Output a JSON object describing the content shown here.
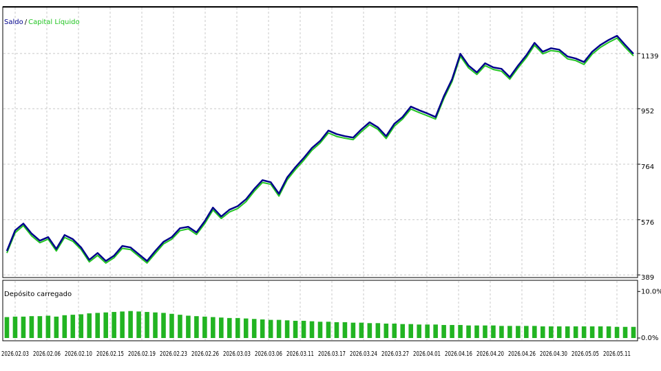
{
  "chart_data": [
    {
      "type": "line",
      "legend_separator": "/",
      "series": [
        {
          "name": "Capital Líquido",
          "color": "#22c422",
          "values": [
            463,
            532,
            556,
            521,
            498,
            510,
            470,
            516,
            503,
            475,
            433,
            455,
            429,
            447,
            479,
            475,
            452,
            429,
            462,
            494,
            510,
            539,
            545,
            526,
            563,
            609,
            580,
            602,
            614,
            637,
            672,
            702,
            696,
            656,
            711,
            746,
            777,
            811,
            836,
            870,
            858,
            852,
            847,
            874,
            898,
            882,
            851,
            893,
            917,
            951,
            939,
            928,
            917,
            986,
            1044,
            1130,
            1090,
            1068,
            1098,
            1085,
            1079,
            1052,
            1090,
            1125,
            1167,
            1138,
            1149,
            1145,
            1121,
            1115,
            1102,
            1137,
            1160,
            1177,
            1191,
            1160,
            1131
          ]
        },
        {
          "name": "Saldo",
          "color": "#00008b",
          "values": [
            470,
            540,
            563,
            529,
            505,
            517,
            477,
            524,
            510,
            482,
            440,
            463,
            436,
            454,
            487,
            482,
            459,
            436,
            470,
            501,
            517,
            547,
            552,
            533,
            571,
            617,
            587,
            610,
            622,
            645,
            680,
            710,
            703,
            664,
            719,
            754,
            785,
            819,
            843,
            878,
            866,
            859,
            854,
            882,
            906,
            889,
            859,
            901,
            924,
            959,
            947,
            936,
            924,
            994,
            1052,
            1138,
            1098,
            1075,
            1106,
            1092,
            1087,
            1059,
            1098,
            1133,
            1175,
            1145,
            1157,
            1152,
            1129,
            1122,
            1110,
            1145,
            1168,
            1185,
            1199,
            1168,
            1138
          ]
        }
      ],
      "ylim": [
        380,
        1297
      ],
      "yticks": [
        389,
        576,
        764,
        952,
        1139
      ],
      "grid": true
    },
    {
      "type": "bar",
      "title": "Depósito carregado",
      "color": "#22b422",
      "values": [
        4.5,
        4.6,
        4.6,
        4.7,
        4.7,
        4.8,
        4.6,
        4.9,
        5.0,
        5.1,
        5.3,
        5.4,
        5.5,
        5.6,
        5.7,
        5.8,
        5.7,
        5.6,
        5.5,
        5.4,
        5.2,
        5.0,
        4.8,
        4.7,
        4.6,
        4.5,
        4.4,
        4.3,
        4.3,
        4.2,
        4.1,
        4.0,
        3.9,
        3.9,
        3.8,
        3.7,
        3.7,
        3.6,
        3.5,
        3.5,
        3.4,
        3.4,
        3.3,
        3.3,
        3.2,
        3.2,
        3.1,
        3.1,
        3.0,
        3.0,
        2.9,
        2.9,
        2.9,
        2.8,
        2.8,
        2.8,
        2.7,
        2.7,
        2.7,
        2.7,
        2.6,
        2.6,
        2.6,
        2.6,
        2.6,
        2.5,
        2.5,
        2.5,
        2.5,
        2.5,
        2.5,
        2.5,
        2.5,
        2.5,
        2.4,
        2.4,
        2.4
      ],
      "ylim": [
        0,
        12.4
      ],
      "yticks": [
        {
          "value": 0,
          "label": "0.0%"
        },
        {
          "value": 10,
          "label": "10.0%"
        }
      ],
      "x_labels": [
        "2026.02.03",
        "2026.02.06",
        "2026.02.10",
        "2026.02.15",
        "2026.02.19",
        "2026.02.23",
        "2026.02.26",
        "2026.03.03",
        "2026.03.06",
        "2026.03.11",
        "2026.03.17",
        "2026.03.24",
        "2026.03.27",
        "2026.04.01",
        "2026.04.16",
        "2026.04.20",
        "2026.04.26",
        "2026.04.30",
        "2026.05.05",
        "2026.05.11"
      ],
      "grid": true
    }
  ]
}
